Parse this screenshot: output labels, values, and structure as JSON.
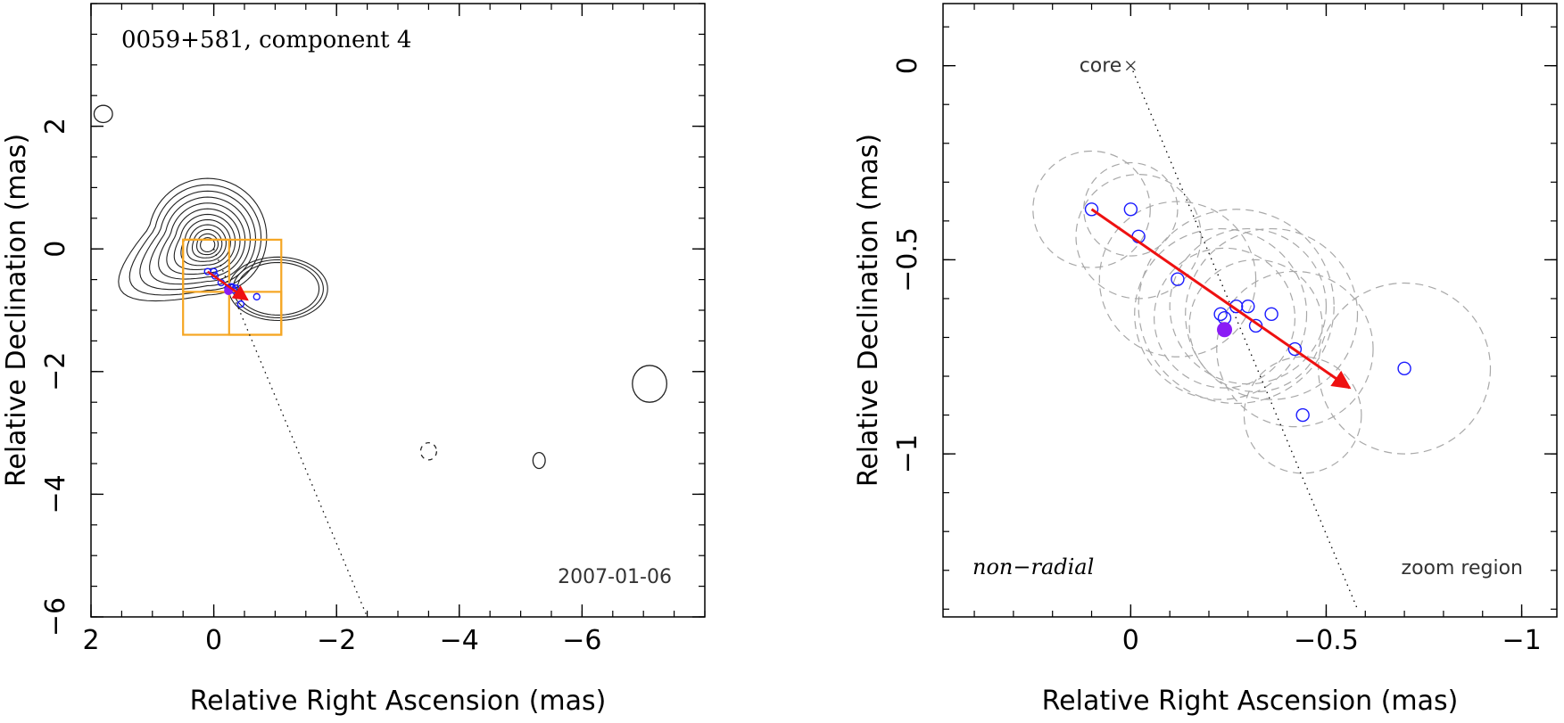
{
  "colors": {
    "contour": "#222222",
    "region_box": "#f5a623",
    "vector": "#ee1111",
    "point": "#1a1aff",
    "filled_point": "#8a1cf5",
    "fit_circle": "#a8a8a8",
    "trajectory": "#000000"
  },
  "chart_data": [
    {
      "type": "scatter",
      "panel": "left",
      "title": "0059+581, component 4",
      "epoch_label": "2007-01-06",
      "xlabel": "Relative Right Ascension (mas)",
      "ylabel": "Relative Declination (mas)",
      "xlim": [
        2.0,
        -8.0
      ],
      "ylim": [
        -6.0,
        4.0
      ],
      "xticks": [
        2,
        0,
        -2,
        -4,
        -6
      ],
      "xtick_labels": [
        "2",
        "0",
        "−2",
        "−4",
        "−6"
      ],
      "yticks": [
        2,
        0,
        -2,
        -4,
        -6
      ],
      "ytick_labels": [
        "2",
        "0",
        "−2",
        "−4",
        "−6"
      ],
      "core_position": [
        0,
        0
      ],
      "contour_levels": 12,
      "contour_peak": [
        0.1,
        0.05
      ],
      "isolated_contours": [
        {
          "x": 1.8,
          "y": 2.2,
          "rx": 0.15,
          "ry": 0.14,
          "dashed": false
        },
        {
          "x": -7.1,
          "y": -2.2,
          "rx": 0.28,
          "ry": 0.3,
          "dashed": false
        },
        {
          "x": -3.5,
          "y": -3.3,
          "rx": 0.13,
          "ry": 0.14,
          "dashed": true
        },
        {
          "x": -5.3,
          "y": -3.45,
          "rx": 0.1,
          "ry": 0.13,
          "dashed": false
        }
      ],
      "zoom_boxes": [
        {
          "x1": 0.5,
          "x2": -1.1,
          "y1": 0.15,
          "y2": -1.4
        },
        {
          "x1": 0.5,
          "x2": -0.25,
          "y1": 0.15,
          "y2": -0.7
        },
        {
          "x1": -0.25,
          "x2": -1.1,
          "y1": -0.7,
          "y2": -1.4
        }
      ],
      "trajectory_line": {
        "x": [
          0,
          -2.5
        ],
        "y": [
          0,
          -6.0
        ]
      },
      "vector": {
        "x": [
          0.1,
          -0.55
        ],
        "y": [
          -0.37,
          -0.83
        ]
      },
      "points": {
        "x": [
          0.1,
          0.0,
          -0.02,
          -0.12,
          -0.23,
          -0.24,
          -0.27,
          -0.3,
          -0.32,
          -0.36,
          -0.42,
          -0.44,
          -0.7
        ],
        "y": [
          -0.37,
          -0.37,
          -0.44,
          -0.55,
          -0.64,
          -0.65,
          -0.62,
          -0.62,
          -0.67,
          -0.64,
          -0.73,
          -0.9,
          -0.78
        ]
      },
      "filled_point": {
        "x": -0.24,
        "y": -0.68
      }
    },
    {
      "type": "scatter",
      "panel": "right",
      "core_label": "core",
      "motion_label": "non−radial",
      "region_label": "zoom region",
      "xlabel": "Relative Right Ascension (mas)",
      "ylabel": "Relative Declination (mas)",
      "xlim": [
        0.48,
        -1.09
      ],
      "ylim": [
        -1.42,
        0.16
      ],
      "xticks": [
        0,
        -0.5,
        -1
      ],
      "xtick_labels": [
        "0",
        "−0.5",
        "−1"
      ],
      "yticks": [
        0,
        -0.5,
        -1
      ],
      "ytick_labels": [
        "0",
        "−0.5",
        "−1"
      ],
      "core_position": [
        0,
        0
      ],
      "trajectory_line": {
        "x": [
          0,
          -0.58
        ],
        "y": [
          0,
          -1.4
        ]
      },
      "vector": {
        "x": [
          0.1,
          -0.56
        ],
        "y": [
          -0.37,
          -0.83
        ]
      },
      "points": {
        "x": [
          0.1,
          0.0,
          -0.02,
          -0.12,
          -0.23,
          -0.24,
          -0.27,
          -0.3,
          -0.32,
          -0.36,
          -0.42,
          -0.44,
          -0.7
        ],
        "y": [
          -0.37,
          -0.37,
          -0.44,
          -0.55,
          -0.64,
          -0.65,
          -0.62,
          -0.62,
          -0.67,
          -0.64,
          -0.73,
          -0.9,
          -0.78
        ]
      },
      "filled_point": {
        "x": -0.24,
        "y": -0.68
      },
      "fit_circles": [
        {
          "x": 0.1,
          "y": -0.37,
          "r": 0.15
        },
        {
          "x": 0.0,
          "y": -0.37,
          "r": 0.12
        },
        {
          "x": -0.02,
          "y": -0.44,
          "r": 0.16
        },
        {
          "x": -0.12,
          "y": -0.55,
          "r": 0.2
        },
        {
          "x": -0.23,
          "y": -0.64,
          "r": 0.22
        },
        {
          "x": -0.24,
          "y": -0.65,
          "r": 0.18
        },
        {
          "x": -0.27,
          "y": -0.62,
          "r": 0.25
        },
        {
          "x": -0.3,
          "y": -0.62,
          "r": 0.2
        },
        {
          "x": -0.32,
          "y": -0.67,
          "r": 0.17
        },
        {
          "x": -0.36,
          "y": -0.64,
          "r": 0.22
        },
        {
          "x": -0.42,
          "y": -0.73,
          "r": 0.2
        },
        {
          "x": -0.44,
          "y": -0.9,
          "r": 0.15
        },
        {
          "x": -0.7,
          "y": -0.78,
          "r": 0.22
        }
      ]
    }
  ]
}
